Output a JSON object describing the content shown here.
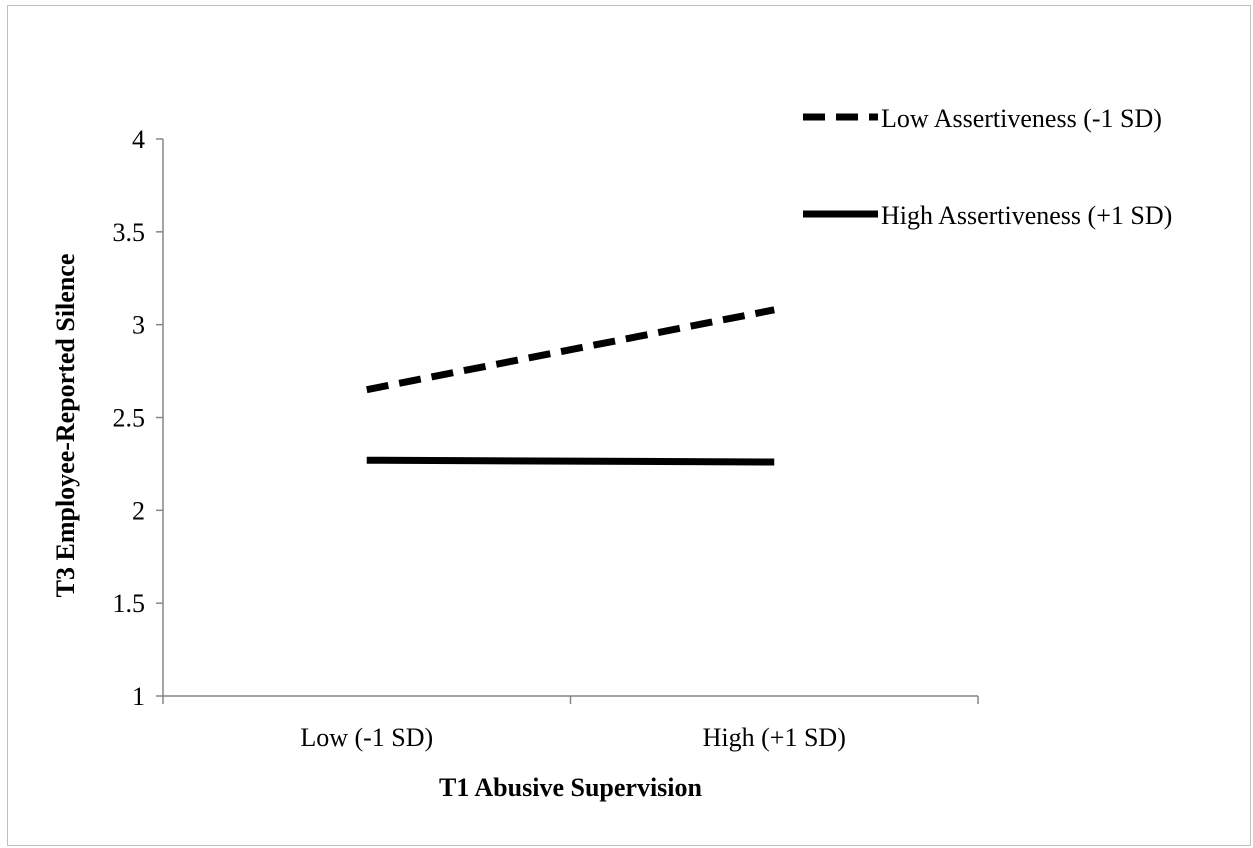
{
  "chart_data": {
    "type": "line",
    "title": "",
    "xlabel": "T1 Abusive Supervision",
    "ylabel": "T3 Employee-Reported Silence",
    "categories": [
      "Low (-1 SD)",
      "High (+1 SD)"
    ],
    "ylim": [
      1,
      4
    ],
    "yticks": [
      "1",
      "1.5",
      "2",
      "2.5",
      "3",
      "3.5",
      "4"
    ],
    "grid": false,
    "legend_position": "top-right",
    "series": [
      {
        "name": "Low Assertiveness (-1 SD)",
        "values": [
          2.65,
          3.08
        ],
        "style": "dashed",
        "color": "#000000"
      },
      {
        "name": "High Assertiveness (+1 SD)",
        "values": [
          2.27,
          2.26
        ],
        "style": "solid",
        "color": "#000000"
      }
    ]
  }
}
